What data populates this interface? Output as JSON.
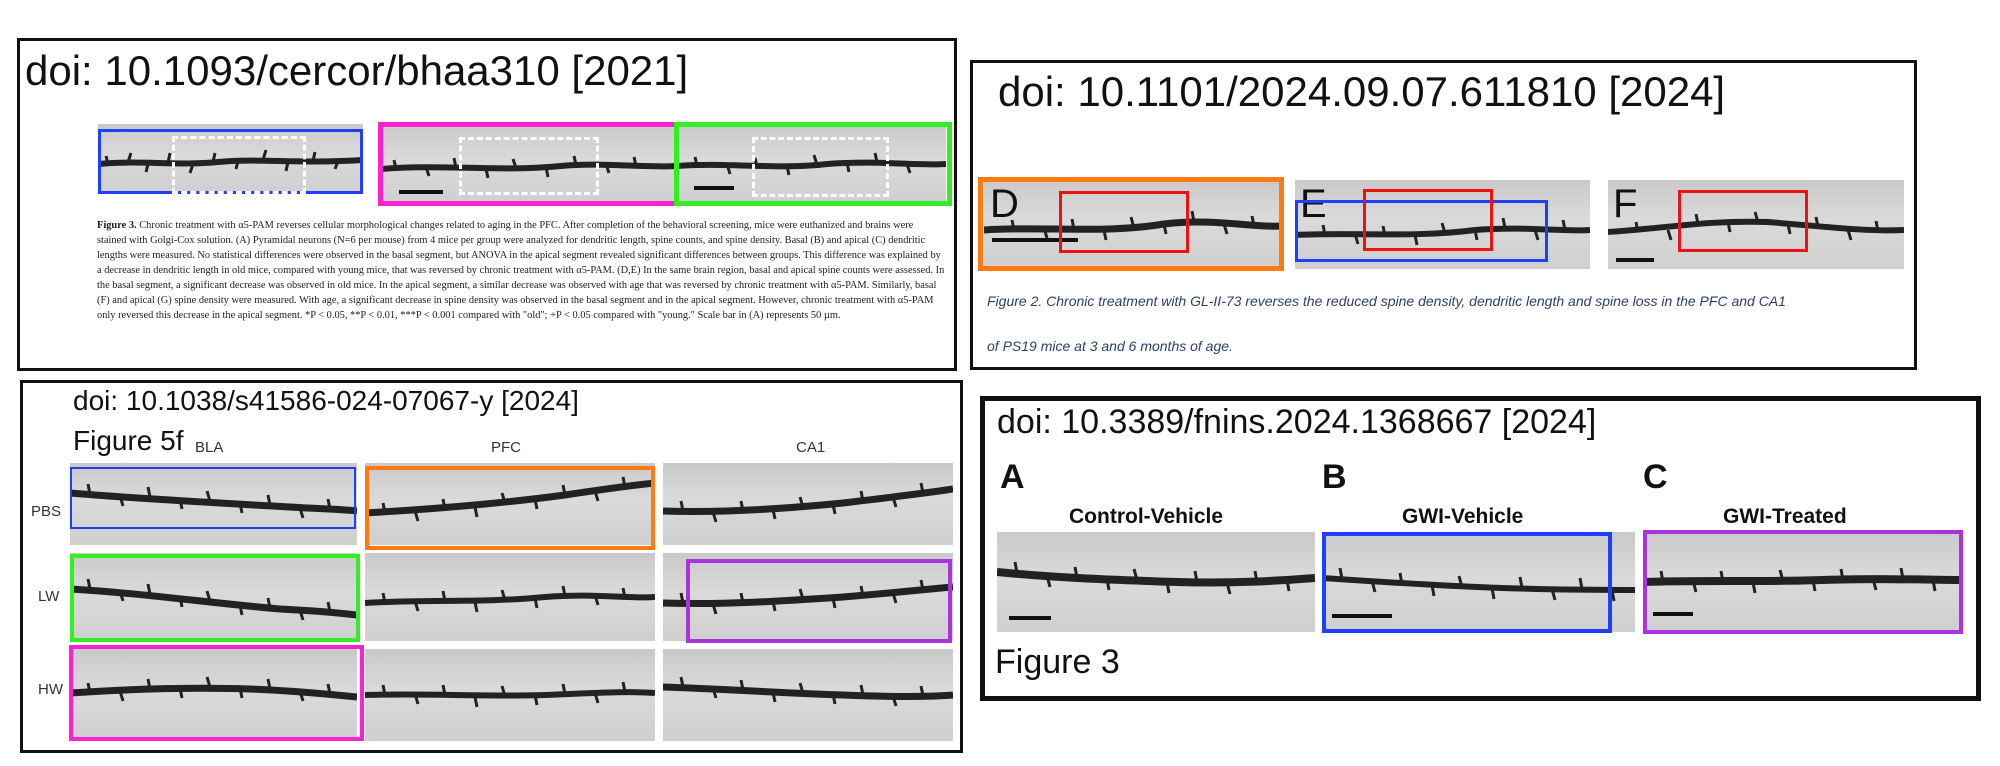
{
  "panels": {
    "p1": {
      "doi": "doi: 10.1093/cercor/bhaa310 [2021]",
      "caption_title": "Figure 3.",
      "caption_body": "Chronic treatment with α5-PAM reverses cellular morphological changes related to aging in the PFC. After completion of the behavioral screening, mice were euthanized and brains were stained with Golgi-Cox solution. (A) Pyramidal neurons (N=6 per mouse) from 4 mice per group were analyzed for dendritic length, spine counts, and spine density. Basal (B) and apical (C) dendritic lengths were measured. No statistical differences were observed in the basal segment, but ANOVA in the apical segment revealed significant differences between groups. This difference was explained by a decrease in dendritic length in old mice, compared with young mice, that was reversed by chronic treatment with α5-PAM. (D,E) In the same brain region, basal and apical spine counts were assessed. In the basal segment, a significant decrease was observed in old mice. In the apical segment, a similar decrease was observed with age that was reversed by chronic treatment with α5-PAM. Similarly, basal (F) and apical (G) spine density were measured. With age, a significant decrease in spine density was observed in the basal segment and in the apical segment. However, chronic treatment with α5-PAM only reversed this decrease in the apical segment. *P < 0.05, **P < 0.01, ***P < 0.001 compared with \"old\"; +P < 0.05 compared with \"young.\" Scale bar in (A) represents 50 µm."
    },
    "p2": {
      "doi": "doi: 10.1101/2024.09.07.611810 [2024]",
      "letters": [
        "D",
        "E",
        "F"
      ],
      "caption": "Figure 2. Chronic treatment with GL-II-73 reverses the reduced spine density, dendritic length and spine loss in the PFC and CA1",
      "caption_line2": "of PS19 mice at 3 and 6 months of age."
    },
    "p3": {
      "doi": "doi: 10.1038/s41586-024-07067-y [2024]",
      "figure": "Figure 5f",
      "columns": [
        "BLA",
        "PFC",
        "CA1"
      ],
      "rows": [
        "PBS",
        "LW",
        "HW"
      ]
    },
    "p4": {
      "doi": "doi: 10.3389/fnins.2024.1368667 [2024]",
      "letters": [
        "A",
        "B",
        "C"
      ],
      "titles": [
        "Control-Vehicle",
        "GWI-Vehicle",
        "GWI-Treated"
      ],
      "figure": "Figure 3"
    }
  },
  "colors": {
    "blue": "#1f3fff",
    "magenta": "#ff22cc",
    "green": "#33ee22",
    "orange": "#ff7a11",
    "red": "#ee1111",
    "purple": "#aa33dd",
    "dashed": "#ffffff"
  }
}
